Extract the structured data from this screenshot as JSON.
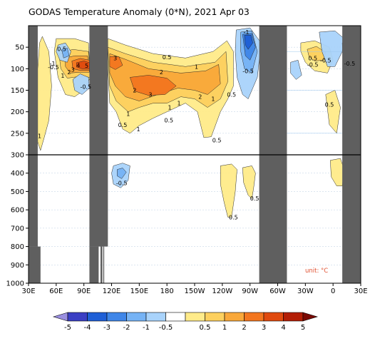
{
  "chart_data": {
    "type": "heatmap",
    "title": "GODAS Temperature Anomaly (0*N), 2021 Apr 03",
    "unit_label": "unit: °C",
    "x_ticks": [
      "30E",
      "60E",
      "90E",
      "120E",
      "150E",
      "180",
      "150W",
      "120W",
      "90W",
      "60W",
      "30W",
      "0",
      "30E"
    ],
    "x_range_deg_east": [
      30,
      390
    ],
    "y_ticks": [
      50,
      100,
      150,
      200,
      250,
      300,
      400,
      500,
      600,
      700,
      800,
      900,
      1000
    ],
    "y_range_m": [
      0,
      1000
    ],
    "y_axis_break_at": 300,
    "colorbar": {
      "labels": [
        "-5",
        "-4",
        "-3",
        "-2",
        "-1",
        "-0.5",
        "0.5",
        "1",
        "2",
        "3",
        "4",
        "5"
      ],
      "colors": [
        "#9a8fe0",
        "#3b3fc4",
        "#1f5fd6",
        "#3f86e8",
        "#76b3f5",
        "#a9d3fb",
        "#ffffff",
        "#ffeb8a",
        "#fdd05e",
        "#f9a83a",
        "#f3761f",
        "#e04a0f",
        "#b31e06",
        "#7a0a04"
      ]
    },
    "land_masks": [
      {
        "name": "Africa",
        "lon_from": 30,
        "lon_to": 40
      },
      {
        "name": "Indonesia",
        "lon_from": 96,
        "lon_to": 116
      },
      {
        "name": "South America",
        "lon_from": 280,
        "lon_to": 310
      },
      {
        "name": "Africa-east",
        "lon_from": 370,
        "lon_to": 390
      }
    ],
    "anomaly_features": [
      {
        "lon": 88,
        "depth": 95,
        "value": 4.5
      },
      {
        "lon": 175,
        "depth": 140,
        "value": 3.2
      },
      {
        "lon": 135,
        "depth": 100,
        "value": 2.8
      },
      {
        "lon": 262,
        "depth": 60,
        "value": -3.5
      },
      {
        "lon": 72,
        "depth": 60,
        "value": -1.5
      },
      {
        "lon": 80,
        "depth": 130,
        "value": -1.0
      },
      {
        "lon": 128,
        "depth": 420,
        "value": -1.0
      },
      {
        "lon": 340,
        "depth": 80,
        "value": 1.5
      },
      {
        "lon": 358,
        "depth": 90,
        "value": -0.5
      },
      {
        "lon": 248,
        "depth": 520,
        "value": 0.5
      }
    ],
    "contour_labels": [
      {
        "text": "0.5",
        "lon": 66,
        "depth": 54
      },
      {
        "text": "-1",
        "lon": 56,
        "depth": 88
      },
      {
        "text": "-0.5",
        "lon": 57,
        "depth": 96
      },
      {
        "text": "4",
        "lon": 84,
        "depth": 92
      },
      {
        "text": "5",
        "lon": 93,
        "depth": 93
      },
      {
        "text": "3",
        "lon": 78,
        "depth": 102
      },
      {
        "text": "2",
        "lon": 74,
        "depth": 108
      },
      {
        "text": "1",
        "lon": 67,
        "depth": 116
      },
      {
        "text": "-0.5",
        "lon": 92,
        "depth": 142
      },
      {
        "text": "1",
        "lon": 42,
        "depth": 256
      },
      {
        "text": "3",
        "lon": 124,
        "depth": 75
      },
      {
        "text": "0.5",
        "lon": 180,
        "depth": 73
      },
      {
        "text": "1",
        "lon": 212,
        "depth": 95
      },
      {
        "text": "2",
        "lon": 174,
        "depth": 108
      },
      {
        "text": "2",
        "lon": 145,
        "depth": 150
      },
      {
        "text": "3",
        "lon": 162,
        "depth": 160
      },
      {
        "text": "1",
        "lon": 193,
        "depth": 180
      },
      {
        "text": "1",
        "lon": 183,
        "depth": 190
      },
      {
        "text": "2",
        "lon": 216,
        "depth": 165
      },
      {
        "text": "1",
        "lon": 230,
        "depth": 170
      },
      {
        "text": "0.5",
        "lon": 250,
        "depth": 160
      },
      {
        "text": "1",
        "lon": 138,
        "depth": 205
      },
      {
        "text": "0.5",
        "lon": 132,
        "depth": 230
      },
      {
        "text": "1",
        "lon": 149,
        "depth": 240
      },
      {
        "text": "0.5",
        "lon": 182,
        "depth": 220
      },
      {
        "text": "0.5",
        "lon": 234,
        "depth": 266
      },
      {
        "text": "-1",
        "lon": 266,
        "depth": 15
      },
      {
        "text": "-0.5",
        "lon": 268,
        "depth": 105
      },
      {
        "text": "0.5",
        "lon": 338,
        "depth": 75
      },
      {
        "text": "-0.5",
        "lon": 352,
        "depth": 80
      },
      {
        "text": "-0.5",
        "lon": 338,
        "depth": 90
      },
      {
        "text": "-0.5",
        "lon": 378,
        "depth": 88
      },
      {
        "text": "0.5",
        "lon": 356,
        "depth": 183
      },
      {
        "text": "-0.5",
        "lon": 131,
        "depth": 454
      },
      {
        "text": "0.5",
        "lon": 275,
        "depth": 538
      },
      {
        "text": "0.5",
        "lon": 252,
        "depth": 640
      }
    ]
  }
}
